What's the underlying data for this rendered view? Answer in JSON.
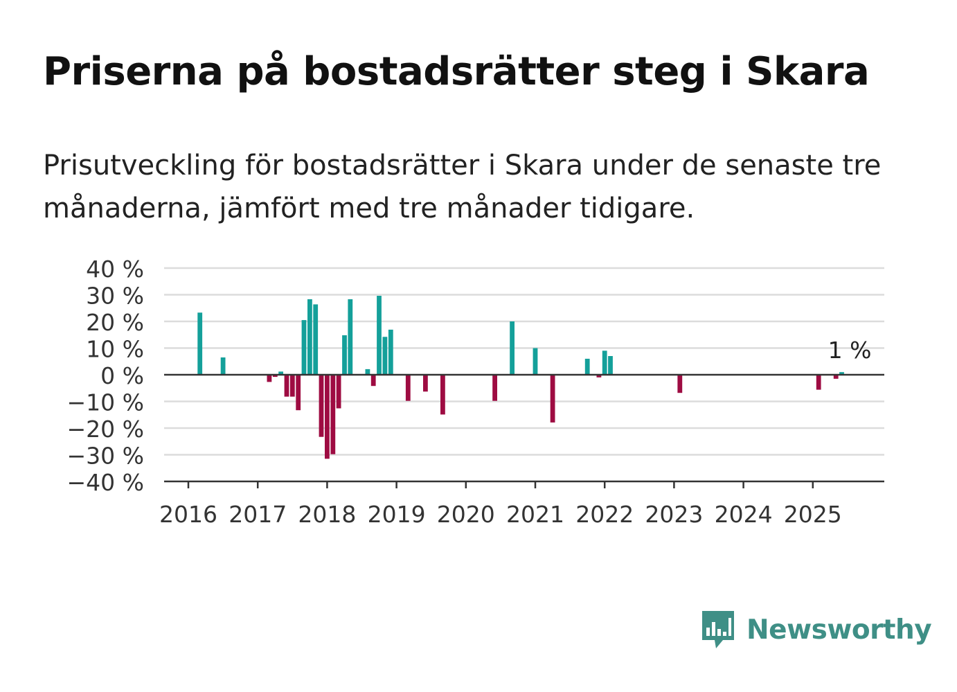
{
  "header": {
    "title": "Priserna på bostadsrätter steg i Skara",
    "subtitle": "Prisutveckling för bostadsrätter i Skara under de senaste tre månaderna, jämfört med tre månader tidigare."
  },
  "brand": {
    "name": "Newsworthy",
    "icon": "newsworthy-bar-chart-icon",
    "color": "#3f8f86"
  },
  "colors": {
    "positive": "#14a09a",
    "negative": "#9e0c42",
    "grid": "#dcdcdc",
    "axis": "#333333"
  },
  "chart_data": {
    "type": "bar",
    "ylim": [
      -40,
      40
    ],
    "yticks": [
      {
        "value": 40,
        "label": "40 %"
      },
      {
        "value": 30,
        "label": "30 %"
      },
      {
        "value": 20,
        "label": "20 %"
      },
      {
        "value": 10,
        "label": "10 %"
      },
      {
        "value": 0,
        "label": "0 %"
      },
      {
        "value": -10,
        "label": "−10 %"
      },
      {
        "value": -20,
        "label": "−20 %"
      },
      {
        "value": -30,
        "label": "−30 %"
      },
      {
        "value": -40,
        "label": "−40 %"
      }
    ],
    "xticks": [
      "2016",
      "2017",
      "2018",
      "2019",
      "2020",
      "2021",
      "2022",
      "2023",
      "2024",
      "2025"
    ],
    "grid": true,
    "annotation": {
      "date": "2025-07",
      "label": "1 %"
    },
    "values": [
      {
        "date": "2016-03",
        "value": 23.3
      },
      {
        "date": "2016-07",
        "value": 6.5
      },
      {
        "date": "2017-03",
        "value": -2.7
      },
      {
        "date": "2017-04",
        "value": -0.8
      },
      {
        "date": "2017-05",
        "value": 1.2
      },
      {
        "date": "2017-06",
        "value": -8.2
      },
      {
        "date": "2017-07",
        "value": -8.2
      },
      {
        "date": "2017-08",
        "value": -13.3
      },
      {
        "date": "2017-09",
        "value": 20.5
      },
      {
        "date": "2017-10",
        "value": 28.3
      },
      {
        "date": "2017-11",
        "value": 26.4
      },
      {
        "date": "2017-12",
        "value": -23.3
      },
      {
        "date": "2018-01",
        "value": -31.5
      },
      {
        "date": "2018-02",
        "value": -29.8
      },
      {
        "date": "2018-03",
        "value": -12.6
      },
      {
        "date": "2018-04",
        "value": 14.8
      },
      {
        "date": "2018-05",
        "value": 28.3
      },
      {
        "date": "2018-08",
        "value": 2.1
      },
      {
        "date": "2018-09",
        "value": -4.2
      },
      {
        "date": "2018-10",
        "value": 29.6
      },
      {
        "date": "2018-11",
        "value": 14.2
      },
      {
        "date": "2018-12",
        "value": 16.9
      },
      {
        "date": "2019-03",
        "value": -9.8
      },
      {
        "date": "2019-06",
        "value": -6.3
      },
      {
        "date": "2019-09",
        "value": -14.9
      },
      {
        "date": "2020-06",
        "value": -9.8
      },
      {
        "date": "2020-09",
        "value": 20.0
      },
      {
        "date": "2021-01",
        "value": 10.0
      },
      {
        "date": "2021-04",
        "value": -17.9
      },
      {
        "date": "2021-10",
        "value": 6.0
      },
      {
        "date": "2021-12",
        "value": -1.0
      },
      {
        "date": "2022-01",
        "value": 9.0
      },
      {
        "date": "2022-02",
        "value": 7.0
      },
      {
        "date": "2023-02",
        "value": -6.8
      },
      {
        "date": "2025-02",
        "value": -5.6
      },
      {
        "date": "2025-05",
        "value": -1.5
      },
      {
        "date": "2025-06",
        "value": 1.0
      }
    ]
  }
}
